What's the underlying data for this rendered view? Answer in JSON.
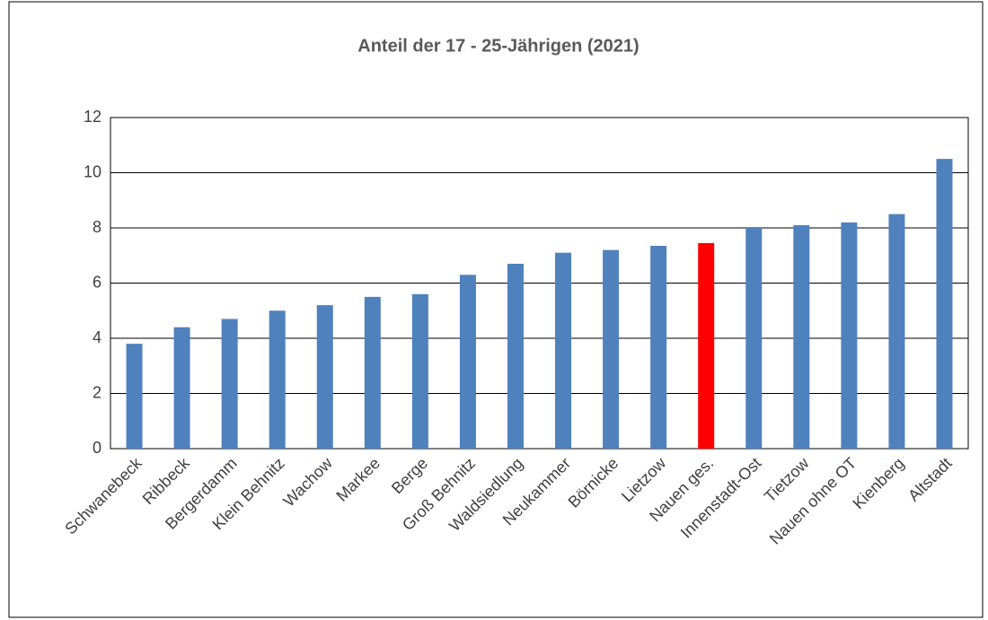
{
  "chart_data": {
    "type": "bar",
    "title": "Anteil der 17 - 25-Jährigen (2021)",
    "categories": [
      "Schwanebeck",
      "Ribbeck",
      "Bergerdamm",
      "Klein Behnitz",
      "Wachow",
      "Markee",
      "Berge",
      "Groß Behnitz",
      "Waldsiedlung",
      "Neukammer",
      "Börnicke",
      "Lietzow",
      "Nauen ges.",
      "Innenstadt-Ost",
      "Tietzow",
      "Nauen ohne OT",
      "Kienberg",
      "Altstadt"
    ],
    "values": [
      3.8,
      4.4,
      4.7,
      5.0,
      5.2,
      5.5,
      5.6,
      6.3,
      6.7,
      7.1,
      7.2,
      7.35,
      7.45,
      8.0,
      8.1,
      8.2,
      8.5,
      10.5
    ],
    "colors": [
      "#4f81bd",
      "#4f81bd",
      "#4f81bd",
      "#4f81bd",
      "#4f81bd",
      "#4f81bd",
      "#4f81bd",
      "#4f81bd",
      "#4f81bd",
      "#4f81bd",
      "#4f81bd",
      "#4f81bd",
      "#ff0000",
      "#4f81bd",
      "#4f81bd",
      "#4f81bd",
      "#4f81bd",
      "#4f81bd"
    ],
    "ylim": [
      0,
      12
    ],
    "yticks": [
      0,
      2,
      4,
      6,
      8,
      10,
      12
    ],
    "grid": true
  }
}
